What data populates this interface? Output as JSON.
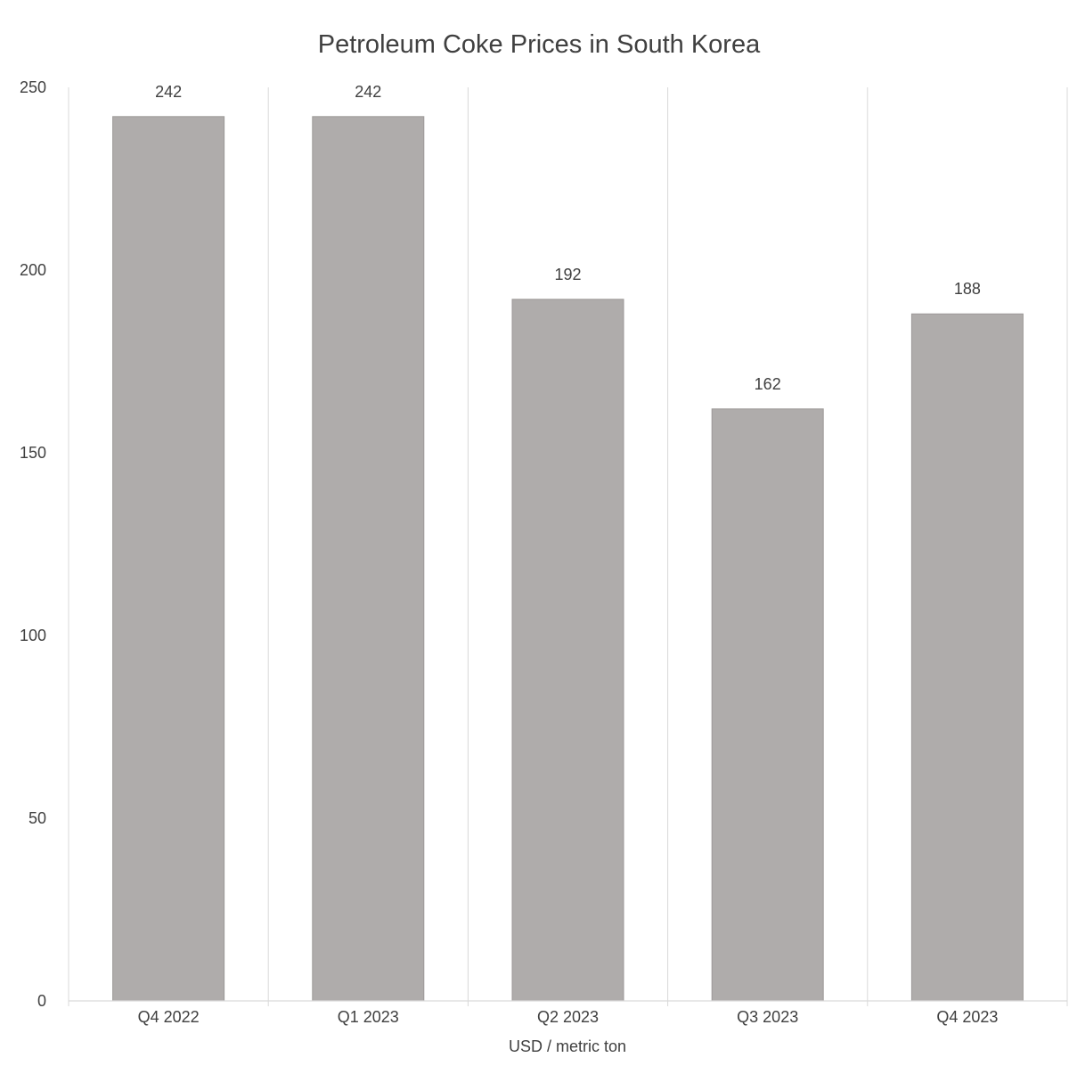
{
  "chart_data": {
    "type": "bar",
    "title": "Petroleum Coke Prices in South Korea",
    "xlabel": "USD / metric ton",
    "ylabel": "",
    "categories": [
      "Q4 2022",
      "Q1 2023",
      "Q2 2023",
      "Q3 2023",
      "Q4 2023"
    ],
    "values": [
      242,
      242,
      192,
      162,
      188
    ],
    "data_labels": [
      "242",
      "242",
      "192",
      "162",
      "188"
    ],
    "ylim": [
      0,
      250
    ],
    "yticks": [
      0,
      50,
      100,
      150,
      200,
      250
    ],
    "ytick_labels": [
      "0",
      "50",
      "100",
      "150",
      "200",
      "250"
    ],
    "grid": "vertical category separators",
    "legend": "none",
    "colors": {
      "bar": "#afacab",
      "bar_edge": "#9c9998",
      "grid": "#d9d9d9",
      "text": "#404040",
      "title": "#404040"
    }
  }
}
